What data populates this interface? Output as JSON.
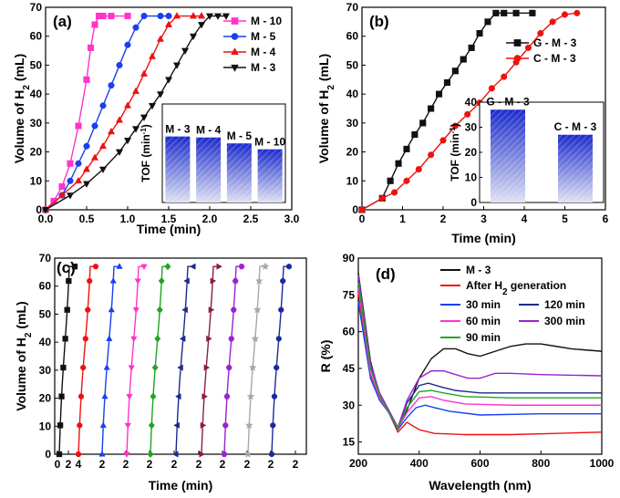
{
  "chart_data": [
    {
      "panel": "(a)",
      "type": "line",
      "xlabel": "Time (min)",
      "ylabel": "Volume of H2 (mL)",
      "xlim": [
        0,
        3
      ],
      "ylim": [
        0,
        70
      ],
      "xticks": [
        "0.0",
        "0.5",
        "1.0",
        "1.5",
        "2.0",
        "2.5",
        "3.0"
      ],
      "yticks": [
        "0",
        "10",
        "20",
        "30",
        "40",
        "50",
        "60",
        "70"
      ],
      "legend_position": "top-right",
      "series": [
        {
          "name": "M - 10",
          "color": "#ff33cc",
          "marker": "square",
          "points": [
            [
              0,
              0
            ],
            [
              0.1,
              3
            ],
            [
              0.2,
              8
            ],
            [
              0.3,
              16
            ],
            [
              0.4,
              29
            ],
            [
              0.5,
              45
            ],
            [
              0.55,
              56
            ],
            [
              0.6,
              64
            ],
            [
              0.65,
              67
            ],
            [
              0.7,
              67
            ],
            [
              0.8,
              67
            ],
            [
              1.0,
              67
            ]
          ]
        },
        {
          "name": "M - 5",
          "color": "#1a3ff0",
          "marker": "circle",
          "points": [
            [
              0,
              0
            ],
            [
              0.2,
              5
            ],
            [
              0.3,
              10
            ],
            [
              0.4,
              16
            ],
            [
              0.5,
              22
            ],
            [
              0.6,
              29
            ],
            [
              0.7,
              36
            ],
            [
              0.8,
              43
            ],
            [
              0.9,
              50
            ],
            [
              1.0,
              57
            ],
            [
              1.1,
              63
            ],
            [
              1.2,
              67
            ],
            [
              1.4,
              67
            ],
            [
              1.5,
              67
            ]
          ]
        },
        {
          "name": "M - 4",
          "color": "#ee1111",
          "marker": "triangle-up",
          "points": [
            [
              0,
              0
            ],
            [
              0.2,
              5
            ],
            [
              0.4,
              10
            ],
            [
              0.5,
              14
            ],
            [
              0.6,
              18
            ],
            [
              0.7,
              22
            ],
            [
              0.8,
              27
            ],
            [
              0.9,
              31
            ],
            [
              1.0,
              36
            ],
            [
              1.1,
              41
            ],
            [
              1.2,
              47
            ],
            [
              1.3,
              53
            ],
            [
              1.4,
              59
            ],
            [
              1.5,
              64
            ],
            [
              1.6,
              67
            ],
            [
              1.8,
              67
            ],
            [
              1.9,
              67
            ]
          ]
        },
        {
          "name": "M - 3",
          "color": "#111111",
          "marker": "triangle-down",
          "points": [
            [
              0,
              0
            ],
            [
              0.3,
              5
            ],
            [
              0.5,
              9
            ],
            [
              0.7,
              14
            ],
            [
              0.9,
              20
            ],
            [
              1.0,
              24
            ],
            [
              1.1,
              28
            ],
            [
              1.2,
              32
            ],
            [
              1.3,
              36
            ],
            [
              1.4,
              40
            ],
            [
              1.5,
              45
            ],
            [
              1.6,
              50
            ],
            [
              1.7,
              55
            ],
            [
              1.8,
              60
            ],
            [
              1.9,
              64
            ],
            [
              2.0,
              67
            ],
            [
              2.1,
              67
            ],
            [
              2.2,
              67
            ]
          ]
        }
      ],
      "inset": {
        "type": "bar",
        "ylabel": "TOF (min-1)",
        "categories": [
          "M - 3",
          "M - 4",
          "M - 5",
          "M - 10"
        ],
        "values": [
          67,
          66,
          60,
          54
        ],
        "ylim": [
          0,
          100
        ]
      }
    },
    {
      "panel": "(b)",
      "type": "line",
      "xlabel": "Time (min)",
      "ylabel": "Volume of H2 (mL)",
      "xlim": [
        0,
        6
      ],
      "ylim": [
        0,
        70
      ],
      "xticks": [
        "0",
        "1",
        "2",
        "3",
        "4",
        "5",
        "6"
      ],
      "yticks": [
        "0",
        "10",
        "20",
        "30",
        "40",
        "50",
        "60",
        "70"
      ],
      "legend_position": "top-right",
      "series": [
        {
          "name": "G - M - 3",
          "color": "#111111",
          "marker": "square",
          "points": [
            [
              0,
              0
            ],
            [
              0.5,
              4
            ],
            [
              0.7,
              10
            ],
            [
              0.9,
              16
            ],
            [
              1.1,
              21
            ],
            [
              1.3,
              26
            ],
            [
              1.5,
              30
            ],
            [
              1.7,
              35
            ],
            [
              1.9,
              40
            ],
            [
              2.1,
              44
            ],
            [
              2.3,
              48
            ],
            [
              2.5,
              52
            ],
            [
              2.7,
              56
            ],
            [
              2.9,
              61
            ],
            [
              3.1,
              65
            ],
            [
              3.3,
              68
            ],
            [
              3.5,
              68
            ],
            [
              3.8,
              68
            ],
            [
              4.2,
              68
            ]
          ]
        },
        {
          "name": "C - M - 3",
          "color": "#ee1111",
          "marker": "circle",
          "points": [
            [
              0,
              0
            ],
            [
              0.5,
              4
            ],
            [
              0.8,
              6
            ],
            [
              1.1,
              10
            ],
            [
              1.4,
              14
            ],
            [
              1.7,
              19
            ],
            [
              2.0,
              24
            ],
            [
              2.3,
              29
            ],
            [
              2.6,
              33
            ],
            [
              2.9,
              37
            ],
            [
              3.2,
              42
            ],
            [
              3.5,
              46
            ],
            [
              3.8,
              51
            ],
            [
              4.1,
              56
            ],
            [
              4.4,
              61
            ],
            [
              4.7,
              65
            ],
            [
              5.0,
              67.5
            ],
            [
              5.3,
              68
            ]
          ]
        }
      ],
      "inset": {
        "type": "bar",
        "ylabel": "TOF (min-1)",
        "categories": [
          "G - M - 3",
          "C - M - 3"
        ],
        "values": [
          37,
          27
        ],
        "ylim": [
          0,
          40
        ],
        "yticks": [
          "0",
          "10",
          "20",
          "30",
          "40"
        ]
      }
    },
    {
      "panel": "(c)",
      "type": "line",
      "xlabel": "Time (min)",
      "ylabel": "Volume of H2 (mL)",
      "ylim": [
        0,
        70
      ],
      "yticks": [
        "0",
        "10",
        "20",
        "30",
        "40",
        "50",
        "60",
        "70"
      ],
      "xticks": [
        "0",
        "2",
        "4",
        "2",
        "2",
        "2",
        "2",
        "2",
        "2",
        "2",
        "2",
        "2"
      ],
      "note": "10 consecutive recycling runs, each reaching about 67 mL within about 2 min",
      "cycle_end_volume": 67,
      "cycles": [
        {
          "color": "#111111",
          "marker": "square"
        },
        {
          "color": "#ee1111",
          "marker": "circle"
        },
        {
          "color": "#1a3ff0",
          "marker": "triangle-up"
        },
        {
          "color": "#ff33cc",
          "marker": "triangle-down"
        },
        {
          "color": "#22a322",
          "marker": "diamond"
        },
        {
          "color": "#1a2a8c",
          "marker": "triangle-left"
        },
        {
          "color": "#8a1c4a",
          "marker": "triangle-right"
        },
        {
          "color": "#9a22d0",
          "marker": "hexagon"
        },
        {
          "color": "#a8a8a8",
          "marker": "star"
        },
        {
          "color": "#1a2aa0",
          "marker": "circle"
        }
      ]
    },
    {
      "panel": "(d)",
      "type": "line",
      "xlabel": "Wavelength (nm)",
      "ylabel": "R (%)",
      "xlim": [
        200,
        1000
      ],
      "ylim": [
        10,
        90
      ],
      "xticks": [
        "200",
        "400",
        "600",
        "800",
        "1000"
      ],
      "yticks": [
        "15",
        "30",
        "45",
        "60",
        "75",
        "90"
      ],
      "legend_position": "top",
      "series": [
        {
          "name": "M - 3",
          "color": "#111111",
          "points": [
            [
              200,
              84
            ],
            [
              240,
              48
            ],
            [
              270,
              34
            ],
            [
              300,
              27
            ],
            [
              330,
              21
            ],
            [
              360,
              28
            ],
            [
              400,
              41
            ],
            [
              440,
              49
            ],
            [
              480,
              53
            ],
            [
              520,
              53
            ],
            [
              560,
              51
            ],
            [
              600,
              50
            ],
            [
              650,
              52
            ],
            [
              700,
              54
            ],
            [
              750,
              55
            ],
            [
              800,
              55
            ],
            [
              850,
              54
            ],
            [
              900,
              53
            ],
            [
              1000,
              52
            ]
          ]
        },
        {
          "name": "After H2 generation",
          "color": "#ee1111",
          "points": [
            [
              200,
              76
            ],
            [
              240,
              42
            ],
            [
              270,
              33
            ],
            [
              300,
              27
            ],
            [
              330,
              19
            ],
            [
              360,
              23
            ],
            [
              400,
              20
            ],
            [
              450,
              18.5
            ],
            [
              550,
              18
            ],
            [
              700,
              18
            ],
            [
              850,
              18.5
            ],
            [
              1000,
              19
            ]
          ]
        },
        {
          "name": "30 min",
          "color": "#1a3ff0",
          "points": [
            [
              200,
              72
            ],
            [
              240,
              41
            ],
            [
              270,
              32
            ],
            [
              300,
              27
            ],
            [
              330,
              20
            ],
            [
              360,
              25
            ],
            [
              390,
              29
            ],
            [
              420,
              30
            ],
            [
              450,
              29
            ],
            [
              500,
              27.5
            ],
            [
              600,
              26
            ],
            [
              800,
              26.5
            ],
            [
              850,
              26.5
            ],
            [
              1000,
              26.5
            ]
          ]
        },
        {
          "name": "120 min",
          "color": "#1a2a8c",
          "points": [
            [
              200,
              82
            ],
            [
              240,
              46
            ],
            [
              270,
              34
            ],
            [
              300,
              27
            ],
            [
              330,
              20.5
            ],
            [
              360,
              31
            ],
            [
              400,
              38
            ],
            [
              430,
              39
            ],
            [
              470,
              37.5
            ],
            [
              520,
              36
            ],
            [
              600,
              35
            ],
            [
              800,
              35
            ],
            [
              850,
              35
            ],
            [
              1000,
              35
            ]
          ]
        },
        {
          "name": "60 min",
          "color": "#ff33cc",
          "points": [
            [
              200,
              78
            ],
            [
              240,
              43
            ],
            [
              270,
              33
            ],
            [
              300,
              27
            ],
            [
              330,
              20.5
            ],
            [
              360,
              27
            ],
            [
              400,
              33
            ],
            [
              440,
              33.5
            ],
            [
              480,
              32
            ],
            [
              550,
              30.5
            ],
            [
              700,
              30
            ],
            [
              850,
              30
            ],
            [
              1000,
              30
            ]
          ]
        },
        {
          "name": "300 min",
          "color": "#9a22d0",
          "points": [
            [
              200,
              83
            ],
            [
              240,
              47
            ],
            [
              270,
              35
            ],
            [
              300,
              28
            ],
            [
              330,
              21
            ],
            [
              360,
              32
            ],
            [
              400,
              41
            ],
            [
              440,
              44
            ],
            [
              480,
              44
            ],
            [
              520,
              42.5
            ],
            [
              560,
              41
            ],
            [
              600,
              41
            ],
            [
              650,
              43
            ],
            [
              700,
              43
            ],
            [
              800,
              42.5
            ],
            [
              1000,
              42
            ]
          ]
        },
        {
          "name": "90 min",
          "color": "#22a322",
          "points": [
            [
              200,
              80
            ],
            [
              240,
              45
            ],
            [
              270,
              34
            ],
            [
              300,
              27
            ],
            [
              330,
              20.5
            ],
            [
              360,
              29
            ],
            [
              400,
              35.5
            ],
            [
              440,
              36
            ],
            [
              480,
              35
            ],
            [
              550,
              33.5
            ],
            [
              700,
              33
            ],
            [
              850,
              33
            ],
            [
              1000,
              33
            ]
          ]
        }
      ]
    }
  ]
}
